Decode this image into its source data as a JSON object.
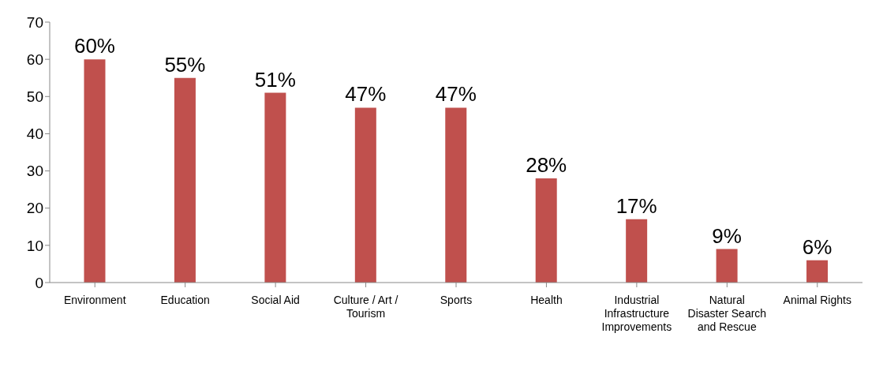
{
  "chart_data": {
    "type": "bar",
    "categories": [
      "Environment",
      "Education",
      "Social Aid",
      "Culture / Art / Tourism",
      "Sports",
      "Health",
      "Industrial Infrastructure Improvements",
      "Natural Disaster Search and Rescue",
      "Animal Rights"
    ],
    "values": [
      60,
      55,
      51,
      47,
      47,
      28,
      17,
      9,
      6
    ],
    "value_labels": [
      "60%",
      "55%",
      "51%",
      "47%",
      "47%",
      "28%",
      "17%",
      "9%",
      "6%"
    ],
    "color": "#c0504d",
    "ylim": [
      0,
      70
    ],
    "yticks": [
      0,
      10,
      20,
      30,
      40,
      50,
      60,
      70
    ],
    "grid": false,
    "legend": false
  }
}
